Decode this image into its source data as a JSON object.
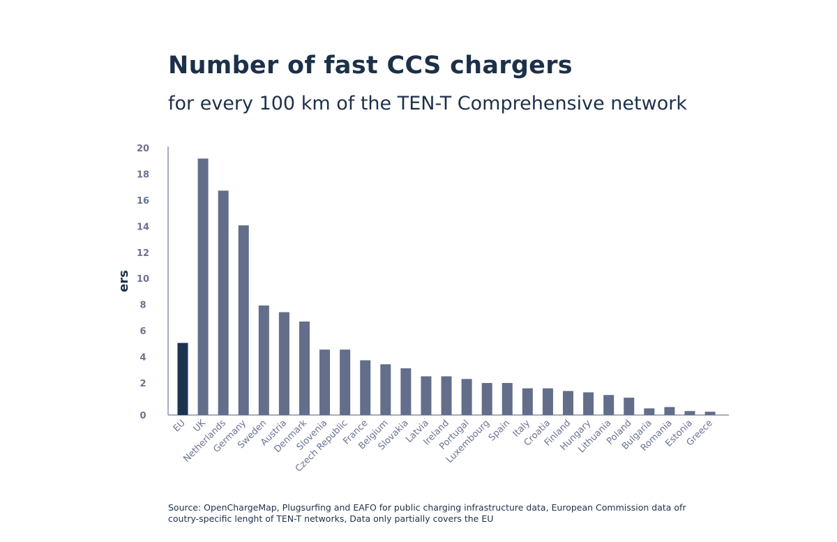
{
  "title": "Number of fast CCS chargers",
  "subtitle": "for every 100 km of the TEN-T Comprehensive network",
  "source": "Source: OpenChargeMap, Plugsurfing and EAFO for public charging infrastructure data, European Commission data ofr coutry-specific lenght of TEN-T networks, Data only partially covers the EU",
  "chart_data": {
    "type": "bar",
    "title": "Number of fast CCS chargers",
    "subtitle": "for every 100 km of the TEN-T Comprehensive network",
    "xlabel": "",
    "ylabel": "ers",
    "ylim": [
      0,
      20
    ],
    "yticks": [
      0,
      2,
      4,
      6,
      8,
      10,
      12,
      14,
      16,
      18,
      20
    ],
    "grid": false,
    "categories": [
      "EU",
      "UK",
      "Netherlands",
      "Germany",
      "Sweden",
      "Austria",
      "Denmark",
      "Slovenia",
      "Czech Republic",
      "France",
      "Belgium",
      "Slovakia",
      "Latvia",
      "Ireland",
      "Portugal",
      "Luxembourg",
      "Spain",
      "Italy",
      "Croatia",
      "Finland",
      "Hungary",
      "Lithuania",
      "Poland",
      "Bulgaria",
      "Romania",
      "Estonia",
      "Greece"
    ],
    "values": [
      5.4,
      19.2,
      16.8,
      14.2,
      8.2,
      7.7,
      7.0,
      4.9,
      4.9,
      4.1,
      3.8,
      3.5,
      2.9,
      2.9,
      2.7,
      2.4,
      2.4,
      2.0,
      2.0,
      1.8,
      1.7,
      1.5,
      1.3,
      0.5,
      0.6,
      0.3,
      0.25
    ],
    "colors": {
      "highlight": "#1c3350",
      "bar": "#626e8a",
      "axis": "#8a93a8",
      "label": "#6a7390"
    },
    "highlight_category": "EU"
  }
}
